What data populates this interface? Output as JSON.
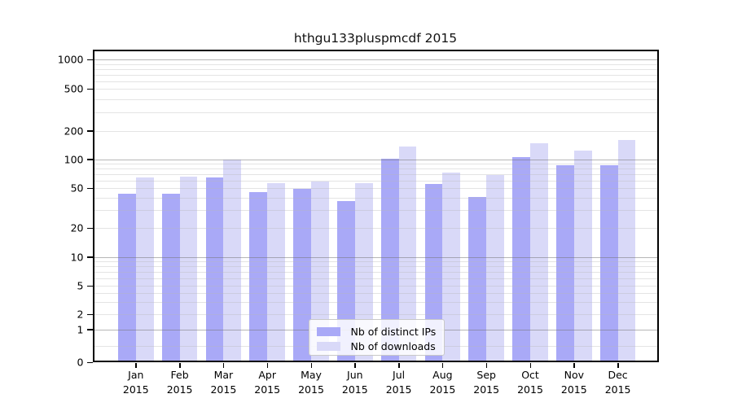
{
  "title": "hthgu133pluspmcdf 2015",
  "legend": {
    "items": [
      {
        "label": "Nb of distinct IPs",
        "color": "#a9a9f7"
      },
      {
        "label": "Nb of downloads",
        "color": "#d9d9f8"
      }
    ]
  },
  "colors": {
    "bar_distinct_ips": "#a9a9f7",
    "bar_downloads": "#d9d9f8",
    "spine": "#000000"
  },
  "chart_data": {
    "type": "bar",
    "title": "hthgu133pluspmcdf 2015",
    "categories": [
      "Jan",
      "Feb",
      "Mar",
      "Apr",
      "May",
      "Jun",
      "Jul",
      "Aug",
      "Sep",
      "Oct",
      "Nov",
      "Dec"
    ],
    "x_sublabel": "2015",
    "series": [
      {
        "name": "Nb of distinct IPs",
        "color": "#a9a9f7",
        "values": [
          44,
          44,
          64,
          46,
          49,
          37,
          102,
          55,
          41,
          106,
          86,
          87
        ]
      },
      {
        "name": "Nb of downloads",
        "color": "#d9d9f8",
        "values": [
          64,
          66,
          100,
          56,
          58,
          56,
          136,
          73,
          68,
          147,
          123,
          158
        ]
      }
    ],
    "y_ticks": [
      0,
      1,
      2,
      5,
      10,
      20,
      50,
      100,
      200,
      500,
      1000
    ],
    "y_scale": "log-like",
    "ylim": [
      0,
      1200
    ],
    "grid": true,
    "grid_major": [
      1,
      10,
      100,
      1000
    ],
    "grid_minor": [
      0.5,
      2,
      3,
      4,
      5,
      6,
      7,
      8,
      9,
      20,
      30,
      40,
      50,
      60,
      70,
      80,
      90,
      200,
      300,
      400,
      500,
      600,
      700,
      800,
      900
    ],
    "scale_anchors": [
      [
        0,
        1.0
      ],
      [
        1,
        0.8945
      ],
      [
        2,
        0.8464
      ],
      [
        5,
        0.7552
      ],
      [
        10,
        0.6628
      ],
      [
        20,
        0.5703
      ],
      [
        50,
        0.4427
      ],
      [
        100,
        0.3503
      ],
      [
        200,
        0.2591
      ],
      [
        500,
        0.125
      ],
      [
        1000,
        0.03125
      ]
    ],
    "legend_position": "lower-center"
  }
}
